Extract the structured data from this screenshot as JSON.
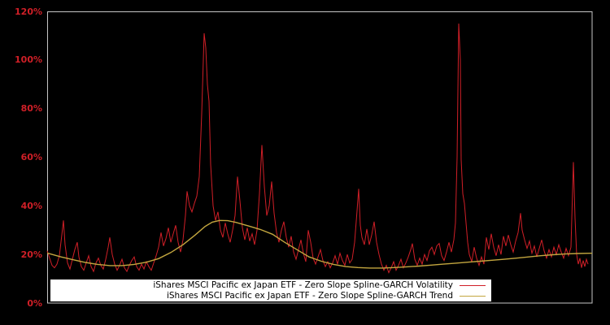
{
  "colors": {
    "background": "#000000",
    "frame": "#c6c6c6",
    "axis_label": "#d01f27",
    "volatility": "#d01f27",
    "trend": "#c3a63f",
    "legend_bg": "#ffffff",
    "legend_text": "#000000"
  },
  "y_axis": {
    "ticks": [
      {
        "label": "0%",
        "value": 0
      },
      {
        "label": "20%",
        "value": 20
      },
      {
        "label": "40%",
        "value": 40
      },
      {
        "label": "60%",
        "value": 60
      },
      {
        "label": "80%",
        "value": 80
      },
      {
        "label": "100%",
        "value": 100
      },
      {
        "label": "120%",
        "value": 120
      }
    ]
  },
  "legend": {
    "items": [
      {
        "label": "iShares MSCI Pacific ex Japan ETF - Zero Slope Spline-GARCH Volatility",
        "series": "volatility"
      },
      {
        "label": "iShares MSCI Pacific ex Japan ETF - Zero Slope Spline-GARCH Trend",
        "series": "trend"
      }
    ]
  },
  "chart_data": {
    "type": "line",
    "title": "",
    "xlabel": "",
    "ylabel": "",
    "ylim": [
      0,
      120
    ],
    "y_unit": "percent",
    "x_axis_labels_visible": false,
    "x_units_total": 670,
    "grid": false,
    "legend_position": "lower center",
    "series": [
      {
        "name": "volatility",
        "color": "volatility",
        "width": 1,
        "points": [
          [
            0,
            21.5
          ],
          [
            3,
            18.5
          ],
          [
            6,
            15.5
          ],
          [
            9,
            14.5
          ],
          [
            12,
            16
          ],
          [
            15,
            19.5
          ],
          [
            18,
            28
          ],
          [
            20,
            34
          ],
          [
            22,
            24
          ],
          [
            25,
            16.5
          ],
          [
            28,
            14
          ],
          [
            31,
            18
          ],
          [
            34,
            22
          ],
          [
            37,
            25
          ],
          [
            39,
            19
          ],
          [
            42,
            15
          ],
          [
            45,
            13.5
          ],
          [
            48,
            16.5
          ],
          [
            51,
            19.5
          ],
          [
            54,
            15
          ],
          [
            57,
            13
          ],
          [
            60,
            16.5
          ],
          [
            63,
            18.5
          ],
          [
            66,
            15.5
          ],
          [
            69,
            14
          ],
          [
            72,
            18
          ],
          [
            75,
            23
          ],
          [
            77,
            27
          ],
          [
            80,
            20
          ],
          [
            83,
            16
          ],
          [
            86,
            13.5
          ],
          [
            89,
            15.5
          ],
          [
            92,
            18
          ],
          [
            95,
            14.5
          ],
          [
            98,
            13
          ],
          [
            101,
            15.5
          ],
          [
            104,
            17.5
          ],
          [
            107,
            19
          ],
          [
            110,
            15
          ],
          [
            113,
            13.5
          ],
          [
            116,
            16
          ],
          [
            119,
            14
          ],
          [
            122,
            17
          ],
          [
            125,
            15
          ],
          [
            128,
            13.5
          ],
          [
            131,
            16.5
          ],
          [
            134,
            19.5
          ],
          [
            137,
            23
          ],
          [
            140,
            29
          ],
          [
            143,
            23.5
          ],
          [
            146,
            26.5
          ],
          [
            149,
            31
          ],
          [
            152,
            25
          ],
          [
            155,
            28.5
          ],
          [
            158,
            32
          ],
          [
            161,
            25
          ],
          [
            164,
            21
          ],
          [
            167,
            26
          ],
          [
            170,
            36
          ],
          [
            172,
            46
          ],
          [
            175,
            40
          ],
          [
            178,
            37.5
          ],
          [
            181,
            41
          ],
          [
            184,
            44
          ],
          [
            187,
            52
          ],
          [
            190,
            78
          ],
          [
            192,
            100
          ],
          [
            193,
            111
          ],
          [
            195,
            105
          ],
          [
            197,
            90
          ],
          [
            199,
            83
          ],
          [
            201,
            57
          ],
          [
            204,
            40
          ],
          [
            207,
            34
          ],
          [
            210,
            37.5
          ],
          [
            213,
            30
          ],
          [
            216,
            27
          ],
          [
            219,
            33
          ],
          [
            222,
            28.5
          ],
          [
            225,
            25
          ],
          [
            228,
            30
          ],
          [
            231,
            36
          ],
          [
            234,
            52
          ],
          [
            237,
            42
          ],
          [
            240,
            31
          ],
          [
            243,
            26
          ],
          [
            246,
            31
          ],
          [
            249,
            25.5
          ],
          [
            252,
            28.5
          ],
          [
            255,
            24
          ],
          [
            258,
            30
          ],
          [
            261,
            45
          ],
          [
            264,
            65
          ],
          [
            267,
            48
          ],
          [
            270,
            36
          ],
          [
            273,
            40
          ],
          [
            276,
            50
          ],
          [
            279,
            37
          ],
          [
            282,
            29
          ],
          [
            285,
            25
          ],
          [
            288,
            30
          ],
          [
            291,
            33.5
          ],
          [
            294,
            27
          ],
          [
            297,
            23
          ],
          [
            300,
            27.5
          ],
          [
            303,
            21
          ],
          [
            306,
            18
          ],
          [
            309,
            22
          ],
          [
            312,
            26
          ],
          [
            315,
            20.5
          ],
          [
            318,
            17
          ],
          [
            321,
            30
          ],
          [
            324,
            25
          ],
          [
            327,
            18.5
          ],
          [
            330,
            16
          ],
          [
            333,
            19
          ],
          [
            336,
            22
          ],
          [
            339,
            17.5
          ],
          [
            342,
            15
          ],
          [
            345,
            17
          ],
          [
            348,
            14.5
          ],
          [
            351,
            16.5
          ],
          [
            354,
            19.5
          ],
          [
            357,
            16
          ],
          [
            360,
            20.5
          ],
          [
            363,
            17.5
          ],
          [
            366,
            15.5
          ],
          [
            369,
            20
          ],
          [
            372,
            16.5
          ],
          [
            375,
            18
          ],
          [
            378,
            25
          ],
          [
            381,
            38
          ],
          [
            383,
            47
          ],
          [
            385,
            32
          ],
          [
            387,
            27
          ],
          [
            390,
            24
          ],
          [
            393,
            30.5
          ],
          [
            396,
            24
          ],
          [
            399,
            28
          ],
          [
            402,
            33.5
          ],
          [
            405,
            25
          ],
          [
            408,
            20
          ],
          [
            411,
            16
          ],
          [
            414,
            13.5
          ],
          [
            417,
            15.5
          ],
          [
            420,
            12.5
          ],
          [
            423,
            14.5
          ],
          [
            426,
            17
          ],
          [
            429,
            13.5
          ],
          [
            432,
            15.5
          ],
          [
            435,
            18
          ],
          [
            438,
            14.5
          ],
          [
            441,
            16.5
          ],
          [
            444,
            19
          ],
          [
            447,
            22
          ],
          [
            449,
            24.5
          ],
          [
            452,
            18
          ],
          [
            455,
            15.5
          ],
          [
            458,
            18.5
          ],
          [
            461,
            16
          ],
          [
            464,
            20
          ],
          [
            467,
            17.5
          ],
          [
            470,
            21.5
          ],
          [
            473,
            23
          ],
          [
            476,
            20
          ],
          [
            479,
            23.5
          ],
          [
            482,
            24.5
          ],
          [
            485,
            19.5
          ],
          [
            488,
            17.5
          ],
          [
            491,
            21
          ],
          [
            494,
            25
          ],
          [
            497,
            21
          ],
          [
            500,
            26
          ],
          [
            502,
            33
          ],
          [
            504,
            60
          ],
          [
            506,
            115
          ],
          [
            508,
            100
          ],
          [
            509,
            59
          ],
          [
            511,
            45
          ],
          [
            513,
            41
          ],
          [
            515,
            33
          ],
          [
            517,
            25
          ],
          [
            519,
            20
          ],
          [
            522,
            17
          ],
          [
            525,
            23
          ],
          [
            528,
            18.5
          ],
          [
            531,
            15.5
          ],
          [
            534,
            19
          ],
          [
            537,
            16
          ],
          [
            540,
            27
          ],
          [
            543,
            22
          ],
          [
            546,
            28.5
          ],
          [
            549,
            23
          ],
          [
            552,
            19.5
          ],
          [
            555,
            24
          ],
          [
            558,
            20
          ],
          [
            561,
            27.5
          ],
          [
            564,
            23.5
          ],
          [
            567,
            28
          ],
          [
            570,
            24
          ],
          [
            573,
            21
          ],
          [
            576,
            25.5
          ],
          [
            579,
            29
          ],
          [
            582,
            37
          ],
          [
            584,
            30
          ],
          [
            587,
            26
          ],
          [
            590,
            22.5
          ],
          [
            593,
            25.5
          ],
          [
            596,
            20.5
          ],
          [
            599,
            23.5
          ],
          [
            602,
            19
          ],
          [
            605,
            22.5
          ],
          [
            608,
            26
          ],
          [
            611,
            21.5
          ],
          [
            614,
            18.5
          ],
          [
            617,
            22
          ],
          [
            620,
            19
          ],
          [
            623,
            23
          ],
          [
            626,
            20
          ],
          [
            629,
            24
          ],
          [
            632,
            21
          ],
          [
            635,
            18.5
          ],
          [
            638,
            22.5
          ],
          [
            641,
            19.5
          ],
          [
            644,
            23
          ],
          [
            647,
            58
          ],
          [
            649,
            35
          ],
          [
            651,
            20
          ],
          [
            653,
            16
          ],
          [
            655,
            18.5
          ],
          [
            657,
            14.5
          ],
          [
            659,
            17.5
          ],
          [
            661,
            15
          ],
          [
            663,
            18
          ],
          [
            665,
            16
          ]
        ]
      },
      {
        "name": "trend",
        "color": "trend",
        "width": 1.4,
        "points": [
          [
            0,
            20.6
          ],
          [
            17,
            19
          ],
          [
            32,
            17.8
          ],
          [
            47,
            16.7
          ],
          [
            62,
            15.9
          ],
          [
            77,
            15.4
          ],
          [
            92,
            15.4
          ],
          [
            107,
            15.9
          ],
          [
            122,
            16.8
          ],
          [
            137,
            18.3
          ],
          [
            152,
            20.8
          ],
          [
            167,
            24
          ],
          [
            182,
            28
          ],
          [
            194,
            31.5
          ],
          [
            203,
            33.3
          ],
          [
            212,
            34
          ],
          [
            222,
            33.9
          ],
          [
            232,
            33.2
          ],
          [
            247,
            31.8
          ],
          [
            262,
            30.3
          ],
          [
            277,
            28.3
          ],
          [
            292,
            25
          ],
          [
            307,
            22
          ],
          [
            322,
            19
          ],
          [
            337,
            17.2
          ],
          [
            352,
            15.9
          ],
          [
            367,
            15
          ],
          [
            382,
            14.6
          ],
          [
            397,
            14.4
          ],
          [
            412,
            14.4
          ],
          [
            427,
            14.6
          ],
          [
            442,
            14.9
          ],
          [
            457,
            15.2
          ],
          [
            472,
            15.6
          ],
          [
            487,
            16
          ],
          [
            502,
            16.4
          ],
          [
            517,
            16.8
          ],
          [
            532,
            17.2
          ],
          [
            547,
            17.6
          ],
          [
            562,
            18
          ],
          [
            577,
            18.5
          ],
          [
            592,
            19
          ],
          [
            607,
            19.5
          ],
          [
            622,
            19.9
          ],
          [
            637,
            20.2
          ],
          [
            652,
            20.4
          ],
          [
            667,
            20.5
          ],
          [
            670,
            20.5
          ]
        ]
      }
    ]
  }
}
